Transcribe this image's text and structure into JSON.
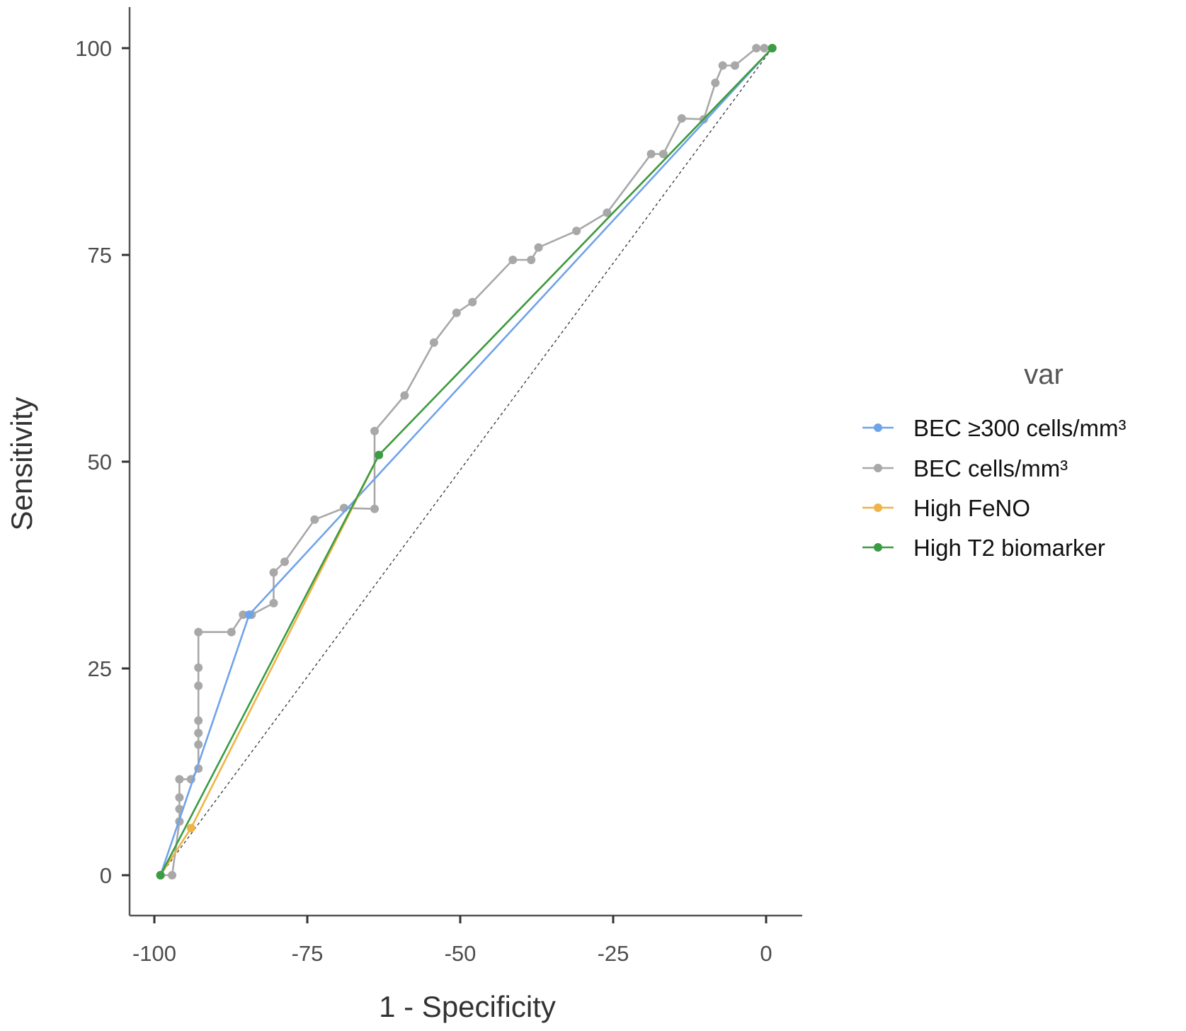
{
  "chart_data": {
    "type": "line",
    "title": "",
    "xlabel": "1 - Specificity",
    "ylabel": "Sensitivity",
    "xlim": [
      -103.7,
      5.9
    ],
    "ylim": [
      -4.9,
      104.4
    ],
    "xticks": [
      -100,
      -75,
      -50,
      -25,
      0
    ],
    "yticks": [
      0,
      25,
      50,
      75,
      100
    ],
    "xtick_labels": [
      "-100",
      "-75",
      "-50",
      "-25",
      "0"
    ],
    "ytick_labels": [
      "0",
      "25",
      "50",
      "75",
      "100"
    ],
    "grid": false,
    "legend": {
      "title": "var",
      "placement": "right"
    },
    "reference_line": {
      "style": "dashed",
      "color": "#333333",
      "points": [
        [
          -99,
          0
        ],
        [
          1,
          100
        ]
      ]
    },
    "series": [
      {
        "name": "BEC ≥300 cells/mm³",
        "color": "#6fa3ea",
        "points": [
          [
            -99,
            0
          ],
          [
            -84.5,
            31.5
          ],
          [
            1,
            100
          ]
        ]
      },
      {
        "name": "BEC cells/mm³",
        "color": "#a8a8a8",
        "points": [
          [
            -99,
            0
          ],
          [
            -97.1,
            0
          ],
          [
            -95.9,
            6.5
          ],
          [
            -95.9,
            8.0
          ],
          [
            -95.9,
            9.4
          ],
          [
            -95.9,
            11.6
          ],
          [
            -94.0,
            11.6
          ],
          [
            -92.8,
            12.9
          ],
          [
            -92.8,
            15.8
          ],
          [
            -92.8,
            17.2
          ],
          [
            -92.8,
            18.7
          ],
          [
            -92.8,
            22.9
          ],
          [
            -92.8,
            25.1
          ],
          [
            -92.8,
            29.4
          ],
          [
            -87.4,
            29.4
          ],
          [
            -85.5,
            31.5
          ],
          [
            -84.1,
            31.5
          ],
          [
            -80.5,
            32.9
          ],
          [
            -80.5,
            36.6
          ],
          [
            -78.7,
            37.9
          ],
          [
            -73.8,
            43.0
          ],
          [
            -69.0,
            44.4
          ],
          [
            -64.0,
            44.3
          ],
          [
            -64.0,
            53.7
          ],
          [
            -59.1,
            58.0
          ],
          [
            -54.3,
            64.4
          ],
          [
            -50.6,
            68.0
          ],
          [
            -48.0,
            69.3
          ],
          [
            -41.4,
            74.4
          ],
          [
            -38.4,
            74.4
          ],
          [
            -37.2,
            75.9
          ],
          [
            -31.0,
            77.9
          ],
          [
            -26.0,
            80.1
          ],
          [
            -18.8,
            87.2
          ],
          [
            -16.8,
            87.2
          ],
          [
            -13.8,
            91.5
          ],
          [
            -10.2,
            91.4
          ],
          [
            -8.3,
            95.8
          ],
          [
            -7.1,
            97.9
          ],
          [
            -5.1,
            97.9
          ],
          [
            -1.6,
            100
          ],
          [
            -0.3,
            100
          ],
          [
            1.0,
            100
          ]
        ]
      },
      {
        "name": "High FeNO",
        "color": "#efb347",
        "points": [
          [
            -99,
            0
          ],
          [
            -94.0,
            5.7
          ],
          [
            -63.3,
            50.8
          ],
          [
            1,
            100
          ]
        ]
      },
      {
        "name": "High T2 biomarker",
        "color": "#3a9c44",
        "points": [
          [
            -99,
            0
          ],
          [
            -63.3,
            50.8
          ],
          [
            1,
            100
          ]
        ]
      }
    ]
  }
}
